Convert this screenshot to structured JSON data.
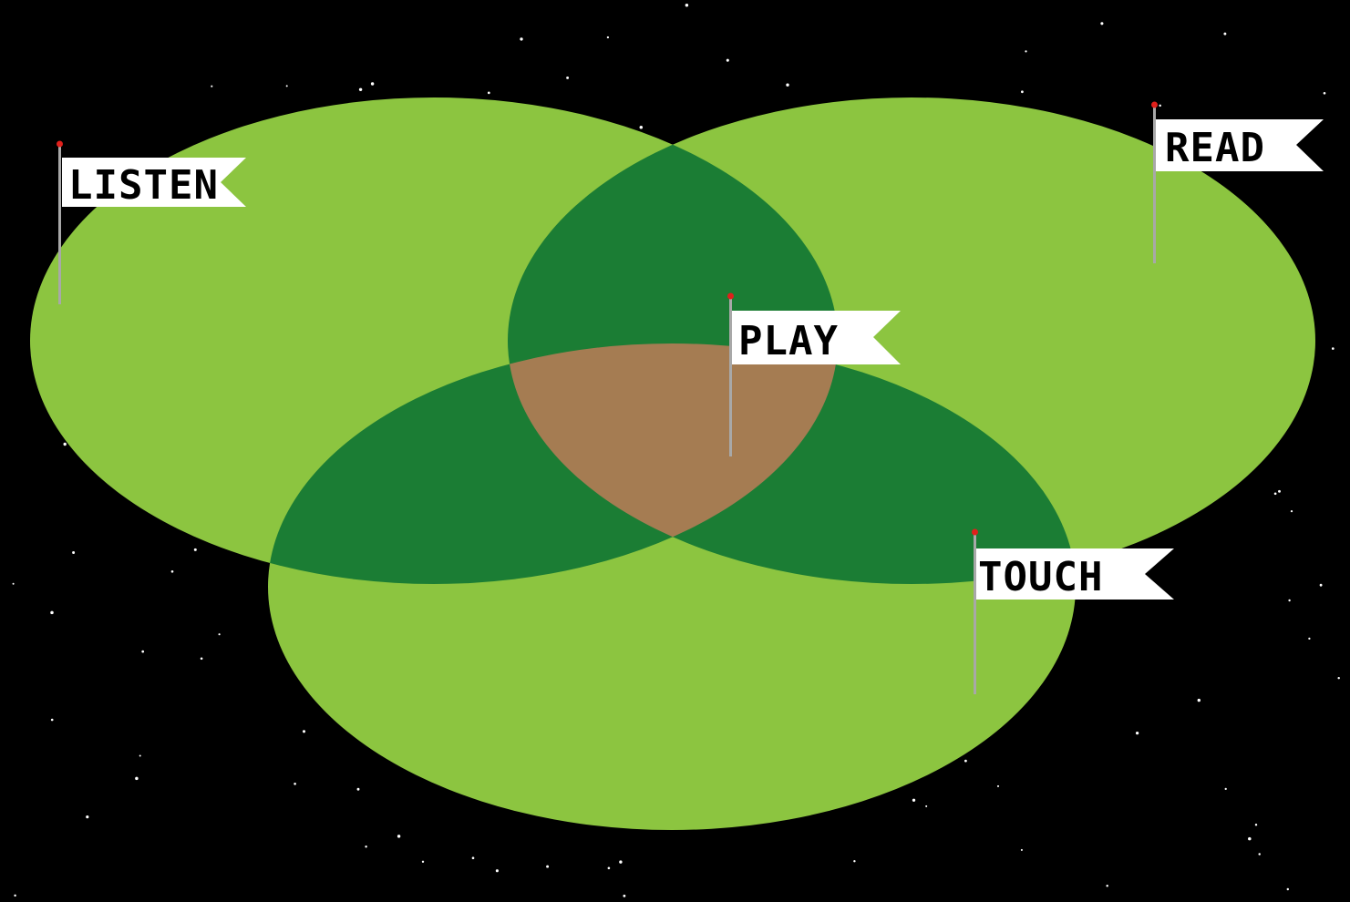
{
  "colors": {
    "background": "#000000",
    "stars": "#ffffff",
    "single_region": "#8cc540",
    "pair_overlap": "#1b7d34",
    "triple_overlap": "#a57c52",
    "flag_cloth": "#ffffff",
    "flag_pole": "#a8a8a8",
    "flag_pin": "#e0201b",
    "label_text": "#000000"
  },
  "diagram": {
    "type": "venn-3",
    "sets": [
      {
        "id": "listen",
        "label": "LISTEN"
      },
      {
        "id": "read",
        "label": "READ"
      },
      {
        "id": "touch",
        "label": "TOUCH"
      }
    ],
    "center_label": "PLAY"
  },
  "flags": {
    "listen": {
      "label": "LISTEN",
      "icon": "flag-icon"
    },
    "read": {
      "label": "READ",
      "icon": "flag-icon"
    },
    "play": {
      "label": "PLAY",
      "icon": "flag-icon"
    },
    "touch": {
      "label": "TOUCH",
      "icon": "flag-icon"
    }
  }
}
